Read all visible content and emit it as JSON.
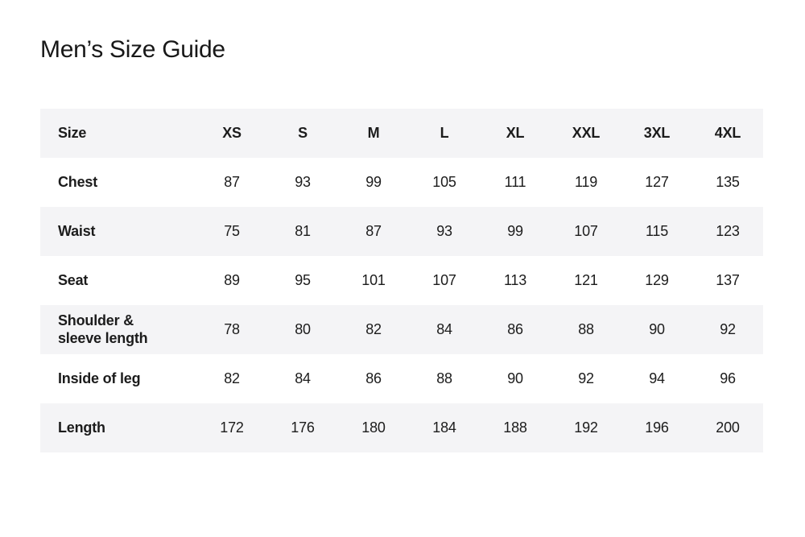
{
  "page": {
    "title": "Men’s Size Guide"
  },
  "table": {
    "columns": [
      "Size",
      "XS",
      "S",
      "M",
      "L",
      "XL",
      "XXL",
      "3XL",
      "4XL"
    ],
    "rows": [
      {
        "label": "Chest",
        "values": [
          "87",
          "93",
          "99",
          "105",
          "111",
          "119",
          "127",
          "135"
        ]
      },
      {
        "label": "Waist",
        "values": [
          "75",
          "81",
          "87",
          "93",
          "99",
          "107",
          "115",
          "123"
        ]
      },
      {
        "label": "Seat",
        "values": [
          "89",
          "95",
          "101",
          "107",
          "113",
          "121",
          "129",
          "137"
        ]
      },
      {
        "label": "Shoulder &\nsleeve length",
        "values": [
          "78",
          "80",
          "82",
          "84",
          "86",
          "88",
          "90",
          "92"
        ]
      },
      {
        "label": "Inside of leg",
        "values": [
          "82",
          "84",
          "86",
          "88",
          "90",
          "92",
          "94",
          "96"
        ]
      },
      {
        "label": "Length",
        "values": [
          "172",
          "176",
          "180",
          "184",
          "188",
          "192",
          "196",
          "200"
        ]
      }
    ],
    "colors": {
      "stripe": "#f4f4f6",
      "text": "#1c1c1c",
      "background": "#ffffff"
    }
  }
}
